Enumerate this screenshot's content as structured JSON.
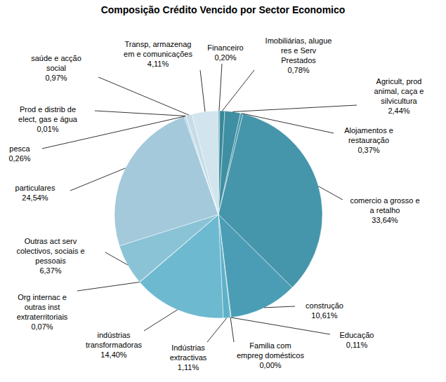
{
  "chart_data": {
    "type": "pie",
    "title": "Composição Crédito Vencido por Sector Economico",
    "categories": [
      "Financeiro",
      "Imobiliárias, alugue\nres e Serv\nPrestados",
      "Agricult, prod\nanimal, caça e\nsilvicultura",
      "Alojamentos e\nrestauração",
      "comercio a grosso e\na retalho",
      "construção",
      "Educação",
      "Familia com\nempreg domésticos",
      "Indústrias\nextractivas",
      "indústrias\ntransformadoras",
      "Org internac e\noutras inst\nextraterritoriais",
      "Outras act serv\ncolectivos, sociais e\npessoais",
      "particulares",
      "pesca",
      "Prod e distrib de\nelect, gas e água",
      "saúde e acção\nsocial",
      "Transp, armazenag\nem e comunicações"
    ],
    "values": [
      0.2,
      0.78,
      2.44,
      0.37,
      33.64,
      10.61,
      0.11,
      0.0,
      1.11,
      14.4,
      0.07,
      6.37,
      24.54,
      0.26,
      0.01,
      0.97,
      4.11
    ],
    "value_labels": [
      "0,20%",
      "0,78%",
      "2,44%",
      "0,37%",
      "33,64%",
      "10,61%",
      "0,11%",
      "0,00%",
      "1,11%",
      "14,40%",
      "0,07%",
      "6,37%",
      "24,54%",
      "0,26%",
      "0,01%",
      "0,97%",
      "4,11%"
    ],
    "colors": [
      "#2f7f91",
      "#37889a",
      "#3f8fa2",
      "#4292a6",
      "#4595ab",
      "#4a9db4",
      "#52a5bc",
      "#58abc2",
      "#5eb1c8",
      "#6cb9d0",
      "#78bed3",
      "#8bc3d6",
      "#a3c9db",
      "#b2d2e1",
      "#bcd7e4",
      "#c6dde8",
      "#d2e4ed"
    ],
    "data_labels": true
  }
}
